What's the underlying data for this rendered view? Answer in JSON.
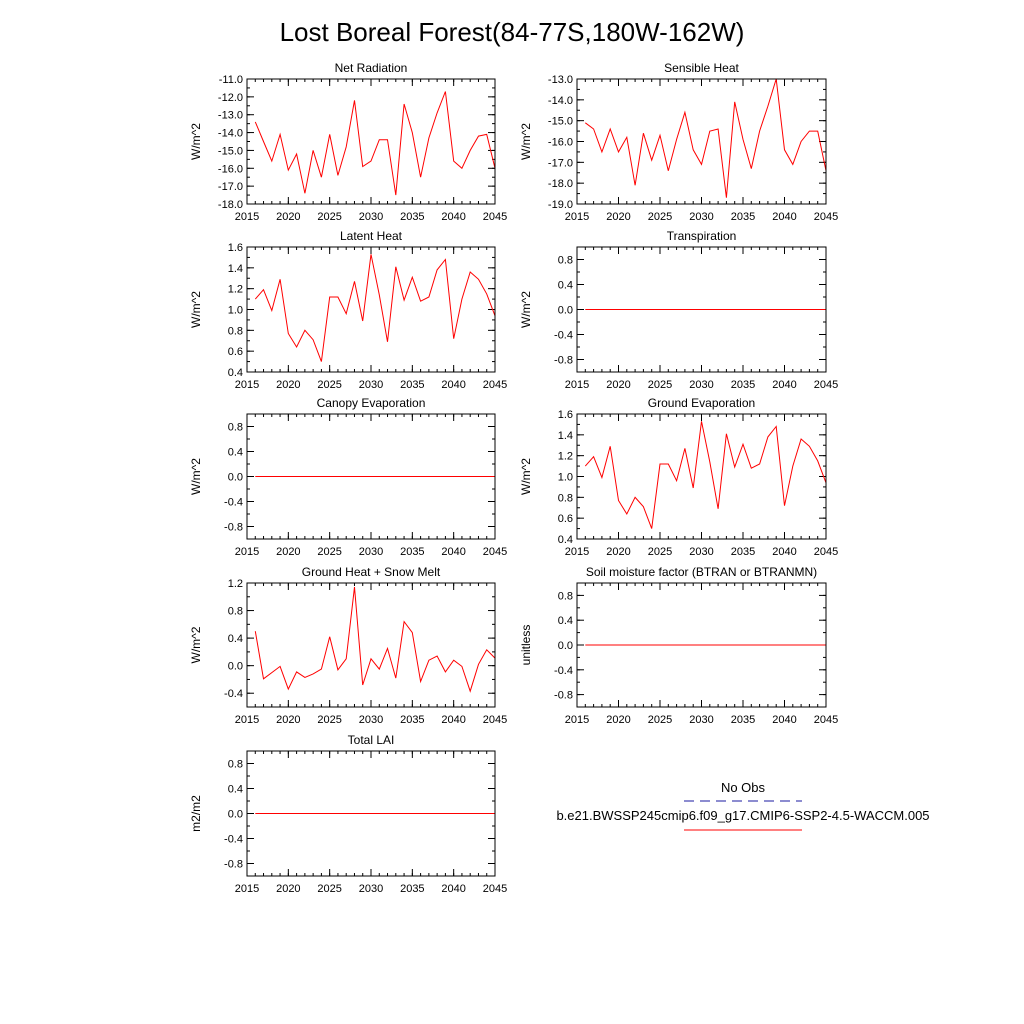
{
  "figure": {
    "title": "Lost Boreal Forest(84-77S,180W-162W)",
    "line_color": "#ff0000",
    "obs_color": "#1a1aa0"
  },
  "legend": {
    "obs_label": "No Obs",
    "model_label": "b.e21.BWSSP245cmip6.f09_g17.CMIP6-SSP2-4.5-WACCM.005"
  },
  "chart_data": [
    {
      "type": "line",
      "title": "Net Radiation",
      "ylabel": "W/m^2",
      "xlim": [
        2015,
        2045
      ],
      "ylim": [
        -18,
        -11
      ],
      "xticks": [
        2015,
        2020,
        2025,
        2030,
        2035,
        2040,
        2045
      ],
      "yticks": [
        -18,
        -17,
        -16,
        -15,
        -14,
        -13,
        -12,
        -11
      ],
      "ytick_labels": [
        "-18.0",
        "-17.0",
        "-16.0",
        "-15.0",
        "-14.0",
        "-13.0",
        "-12.0",
        "-11.0"
      ],
      "x": [
        2016,
        2017,
        2018,
        2019,
        2020,
        2021,
        2022,
        2023,
        2024,
        2025,
        2026,
        2027,
        2028,
        2029,
        2030,
        2031,
        2032,
        2033,
        2034,
        2035,
        2036,
        2037,
        2038,
        2039,
        2040,
        2041,
        2042,
        2043,
        2044,
        2045
      ],
      "values": [
        -13.4,
        -14.5,
        -15.6,
        -14.1,
        -16.1,
        -15.2,
        -17.4,
        -15.0,
        -16.5,
        -14.1,
        -16.4,
        -14.8,
        -12.2,
        -15.9,
        -15.6,
        -14.4,
        -14.4,
        -17.5,
        -12.4,
        -14.0,
        -16.5,
        -14.3,
        -12.9,
        -11.7,
        -15.6,
        -16.0,
        -15.0,
        -14.2,
        -14.1,
        -16.0
      ]
    },
    {
      "type": "line",
      "title": "Sensible Heat",
      "ylabel": "W/m^2",
      "xlim": [
        2015,
        2045
      ],
      "ylim": [
        -19,
        -13
      ],
      "xticks": [
        2015,
        2020,
        2025,
        2030,
        2035,
        2040,
        2045
      ],
      "yticks": [
        -19,
        -18,
        -17,
        -16,
        -15,
        -14,
        -13
      ],
      "ytick_labels": [
        "-19.0",
        "-18.0",
        "-17.0",
        "-16.0",
        "-15.0",
        "-14.0",
        "-13.0"
      ],
      "x": [
        2016,
        2017,
        2018,
        2019,
        2020,
        2021,
        2022,
        2023,
        2024,
        2025,
        2026,
        2027,
        2028,
        2029,
        2030,
        2031,
        2032,
        2033,
        2034,
        2035,
        2036,
        2037,
        2038,
        2039,
        2040,
        2041,
        2042,
        2043,
        2044,
        2045
      ],
      "values": [
        -15.1,
        -15.4,
        -16.5,
        -15.4,
        -16.5,
        -15.8,
        -18.1,
        -15.6,
        -16.9,
        -15.7,
        -17.4,
        -15.9,
        -14.6,
        -16.4,
        -17.1,
        -15.5,
        -15.4,
        -18.7,
        -14.1,
        -15.9,
        -17.3,
        -15.5,
        -14.3,
        -13.0,
        -16.4,
        -17.1,
        -16.0,
        -15.5,
        -15.5,
        -17.4
      ]
    },
    {
      "type": "line",
      "title": "Latent Heat",
      "ylabel": "W/m^2",
      "xlim": [
        2015,
        2045
      ],
      "ylim": [
        0.4,
        1.6
      ],
      "xticks": [
        2015,
        2020,
        2025,
        2030,
        2035,
        2040,
        2045
      ],
      "yticks": [
        0.4,
        0.6,
        0.8,
        1.0,
        1.2,
        1.4,
        1.6
      ],
      "ytick_labels": [
        "0.4",
        "0.6",
        "0.8",
        "1.0",
        "1.2",
        "1.4",
        "1.6"
      ],
      "x": [
        2016,
        2017,
        2018,
        2019,
        2020,
        2021,
        2022,
        2023,
        2024,
        2025,
        2026,
        2027,
        2028,
        2029,
        2030,
        2031,
        2032,
        2033,
        2034,
        2035,
        2036,
        2037,
        2038,
        2039,
        2040,
        2041,
        2042,
        2043,
        2044,
        2045
      ],
      "values": [
        1.1,
        1.19,
        0.99,
        1.29,
        0.77,
        0.64,
        0.8,
        0.71,
        0.5,
        1.12,
        1.12,
        0.96,
        1.27,
        0.89,
        1.53,
        1.14,
        0.69,
        1.41,
        1.09,
        1.31,
        1.08,
        1.12,
        1.38,
        1.48,
        0.72,
        1.1,
        1.36,
        1.29,
        1.15,
        0.94
      ]
    },
    {
      "type": "line",
      "title": "Transpiration",
      "ylabel": "W/m^2",
      "xlim": [
        2015,
        2045
      ],
      "ylim": [
        -1.0,
        1.0
      ],
      "xticks": [
        2015,
        2020,
        2025,
        2030,
        2035,
        2040,
        2045
      ],
      "yticks": [
        -0.8,
        -0.4,
        0.0,
        0.4,
        0.8
      ],
      "ytick_labels": [
        "-0.8",
        "-0.4",
        "0.0",
        "0.4",
        "0.8"
      ],
      "x": [
        2016,
        2045
      ],
      "values": [
        0.0,
        0.0
      ]
    },
    {
      "type": "line",
      "title": "Canopy Evaporation",
      "ylabel": "W/m^2",
      "xlim": [
        2015,
        2045
      ],
      "ylim": [
        -1.0,
        1.0
      ],
      "xticks": [
        2015,
        2020,
        2025,
        2030,
        2035,
        2040,
        2045
      ],
      "yticks": [
        -0.8,
        -0.4,
        0.0,
        0.4,
        0.8
      ],
      "ytick_labels": [
        "-0.8",
        "-0.4",
        "0.0",
        "0.4",
        "0.8"
      ],
      "x": [
        2016,
        2045
      ],
      "values": [
        0.0,
        0.0
      ]
    },
    {
      "type": "line",
      "title": "Ground Evaporation",
      "ylabel": "W/m^2",
      "xlim": [
        2015,
        2045
      ],
      "ylim": [
        0.4,
        1.6
      ],
      "xticks": [
        2015,
        2020,
        2025,
        2030,
        2035,
        2040,
        2045
      ],
      "yticks": [
        0.4,
        0.6,
        0.8,
        1.0,
        1.2,
        1.4,
        1.6
      ],
      "ytick_labels": [
        "0.4",
        "0.6",
        "0.8",
        "1.0",
        "1.2",
        "1.4",
        "1.6"
      ],
      "x": [
        2016,
        2017,
        2018,
        2019,
        2020,
        2021,
        2022,
        2023,
        2024,
        2025,
        2026,
        2027,
        2028,
        2029,
        2030,
        2031,
        2032,
        2033,
        2034,
        2035,
        2036,
        2037,
        2038,
        2039,
        2040,
        2041,
        2042,
        2043,
        2044,
        2045
      ],
      "values": [
        1.1,
        1.19,
        0.99,
        1.29,
        0.77,
        0.64,
        0.8,
        0.71,
        0.5,
        1.12,
        1.12,
        0.96,
        1.27,
        0.89,
        1.53,
        1.14,
        0.69,
        1.41,
        1.09,
        1.31,
        1.08,
        1.12,
        1.38,
        1.48,
        0.72,
        1.1,
        1.36,
        1.29,
        1.15,
        0.94
      ]
    },
    {
      "type": "line",
      "title": "Ground Heat + Snow Melt",
      "ylabel": "W/m^2",
      "xlim": [
        2015,
        2045
      ],
      "ylim": [
        -0.6,
        1.2
      ],
      "xticks": [
        2015,
        2020,
        2025,
        2030,
        2035,
        2040,
        2045
      ],
      "yticks": [
        -0.4,
        0.0,
        0.4,
        0.8,
        1.2
      ],
      "ytick_labels": [
        "-0.4",
        "0.0",
        "0.4",
        "0.8",
        "1.2"
      ],
      "x": [
        2016,
        2017,
        2018,
        2019,
        2020,
        2021,
        2022,
        2023,
        2024,
        2025,
        2026,
        2027,
        2028,
        2029,
        2030,
        2031,
        2032,
        2033,
        2034,
        2035,
        2036,
        2037,
        2038,
        2039,
        2040,
        2041,
        2042,
        2043,
        2044,
        2045
      ],
      "values": [
        0.5,
        -0.19,
        -0.1,
        -0.01,
        -0.34,
        -0.09,
        -0.17,
        -0.12,
        -0.05,
        0.42,
        -0.06,
        0.1,
        1.14,
        -0.28,
        0.1,
        -0.05,
        0.25,
        -0.18,
        0.64,
        0.48,
        -0.23,
        0.08,
        0.14,
        -0.09,
        0.08,
        -0.01,
        -0.37,
        0.02,
        0.23,
        0.11
      ]
    },
    {
      "type": "line",
      "title": "Soil moisture factor (BTRAN or BTRANMN)",
      "ylabel": "unitless",
      "xlim": [
        2015,
        2045
      ],
      "ylim": [
        -1.0,
        1.0
      ],
      "xticks": [
        2015,
        2020,
        2025,
        2030,
        2035,
        2040,
        2045
      ],
      "yticks": [
        -0.8,
        -0.4,
        0.0,
        0.4,
        0.8
      ],
      "ytick_labels": [
        "-0.8",
        "-0.4",
        "0.0",
        "0.4",
        "0.8"
      ],
      "x": [
        2016,
        2045
      ],
      "values": [
        0.0,
        0.0
      ]
    },
    {
      "type": "line",
      "title": "Total LAI",
      "ylabel": "m2/m2",
      "xlim": [
        2015,
        2045
      ],
      "ylim": [
        -1.0,
        1.0
      ],
      "xticks": [
        2015,
        2020,
        2025,
        2030,
        2035,
        2040,
        2045
      ],
      "yticks": [
        -0.8,
        -0.4,
        0.0,
        0.4,
        0.8
      ],
      "ytick_labels": [
        "-0.8",
        "-0.4",
        "0.0",
        "0.4",
        "0.8"
      ],
      "x": [
        2016,
        2045
      ],
      "values": [
        0.0,
        0.0
      ]
    }
  ]
}
